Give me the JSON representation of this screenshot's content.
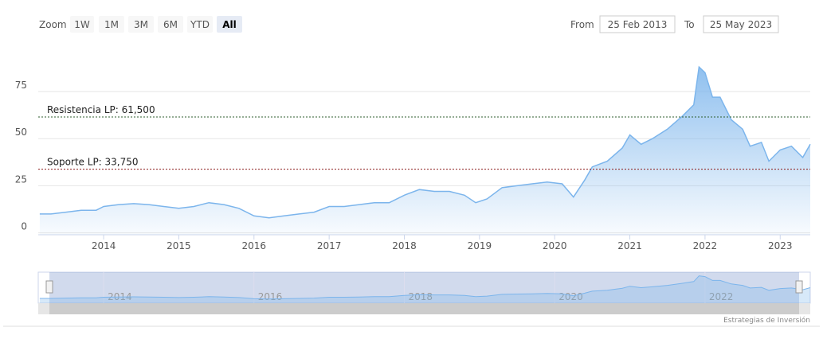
{
  "chart_data": {
    "type": "area",
    "range_selector": {
      "zoom_label": "Zoom",
      "buttons": [
        "1W",
        "1M",
        "3M",
        "6M",
        "YTD",
        "All"
      ],
      "selected": "All",
      "from_label": "From",
      "from": "25 Feb 2013",
      "to_label": "To",
      "to": "25 May 2023"
    },
    "x": [
      2013.15,
      2013.3,
      2013.5,
      2013.7,
      2013.9,
      2014.0,
      2014.2,
      2014.4,
      2014.6,
      2014.8,
      2015.0,
      2015.2,
      2015.4,
      2015.6,
      2015.8,
      2016.0,
      2016.2,
      2016.4,
      2016.6,
      2016.8,
      2017.0,
      2017.2,
      2017.4,
      2017.6,
      2017.8,
      2018.0,
      2018.2,
      2018.4,
      2018.6,
      2018.8,
      2018.95,
      2019.1,
      2019.3,
      2019.5,
      2019.7,
      2019.9,
      2020.1,
      2020.25,
      2020.4,
      2020.5,
      2020.7,
      2020.9,
      2021.0,
      2021.15,
      2021.3,
      2021.5,
      2021.7,
      2021.85,
      2021.92,
      2022.0,
      2022.1,
      2022.2,
      2022.35,
      2022.5,
      2022.6,
      2022.75,
      2022.85,
      2023.0,
      2023.15,
      2023.3,
      2023.4
    ],
    "series": [
      {
        "color": "#7cb5ec",
        "values": [
          10,
          10,
          11,
          12,
          12,
          14,
          15,
          15.5,
          15,
          14,
          13,
          14,
          16,
          15,
          13,
          9,
          8,
          9,
          10,
          11,
          14,
          14,
          15,
          16,
          16,
          20,
          23,
          22,
          22,
          20,
          16,
          18,
          24,
          25,
          26,
          27,
          26,
          19,
          28,
          35,
          38,
          45,
          52,
          47,
          50,
          55,
          62,
          68,
          88,
          85,
          72,
          72,
          60,
          55,
          46,
          48,
          38,
          44,
          46,
          40,
          47
        ]
      }
    ],
    "xlim": [
      2013.13,
      2023.4
    ],
    "xticks": [
      2014,
      2015,
      2016,
      2017,
      2018,
      2019,
      2020,
      2021,
      2022,
      2023
    ],
    "ylim": [
      -1,
      95
    ],
    "yticks": [
      0,
      25,
      50,
      75
    ],
    "grid": true,
    "plot_lines": [
      {
        "value": 61.5,
        "label": "Resistencia LP: 61,500",
        "color": "#2e5e2e"
      },
      {
        "value": 33.75,
        "label": "Soporte LP: 33,750",
        "color": "#8b1a1a"
      }
    ],
    "navigator": {
      "xticks": [
        2014,
        2016,
        2018,
        2020,
        2022
      ]
    },
    "credits": "Estrategias de Inversión"
  }
}
